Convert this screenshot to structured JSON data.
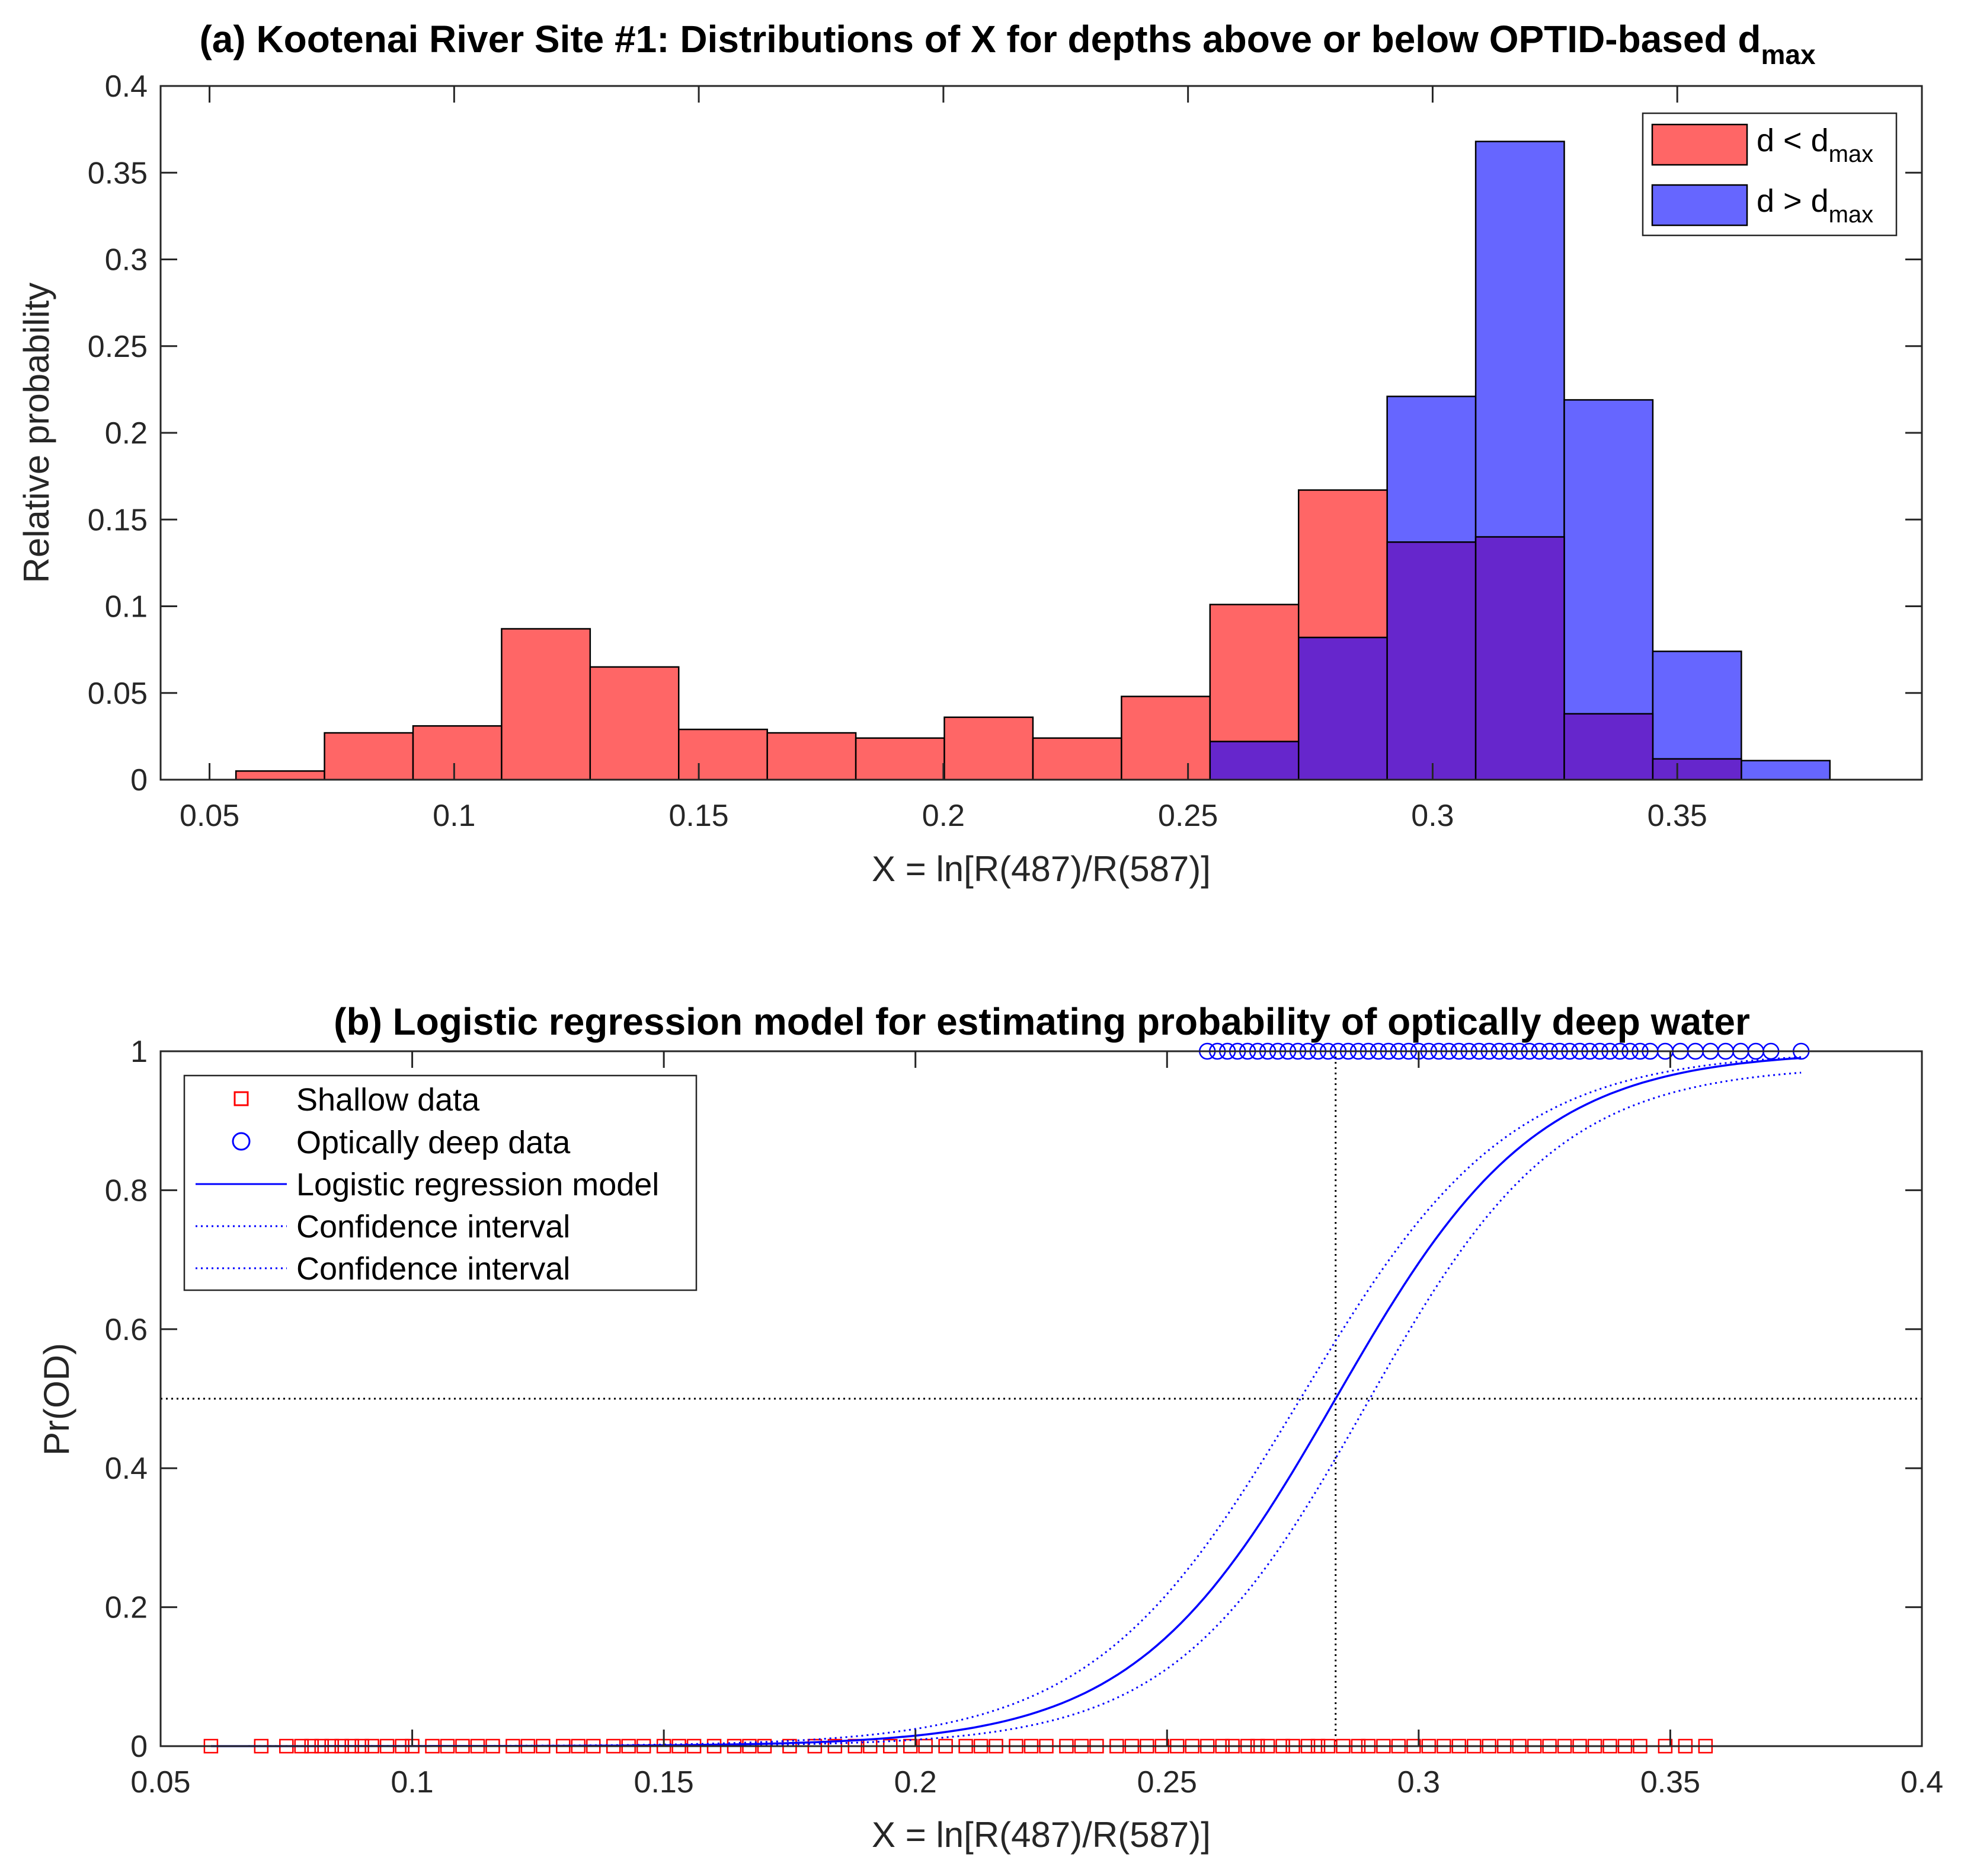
{
  "chart_data": [
    {
      "id": "a",
      "type": "histogram-overlay",
      "title": "(a) Kootenai River Site #1: Distributions of X for depths above or below OPTID-based d",
      "title_subscript": "max",
      "xlabel": "X = ln[R(487)/R(587)]",
      "ylabel": "Relative probability",
      "xlim": [
        0.04,
        0.4
      ],
      "ylim": [
        0,
        0.4
      ],
      "xticks": [
        0.05,
        0.1,
        0.15,
        0.2,
        0.25,
        0.3,
        0.35
      ],
      "xtick_labels": [
        "0.05",
        "0.1",
        "0.15",
        "0.2",
        "0.25",
        "0.3",
        "0.35"
      ],
      "yticks": [
        0,
        0.05,
        0.1,
        0.15,
        0.2,
        0.25,
        0.3,
        0.35,
        0.4
      ],
      "ytick_labels": [
        "0",
        "0.05",
        "0.1",
        "0.15",
        "0.2",
        "0.25",
        "0.3",
        "0.35",
        "0.4"
      ],
      "legend_location": "top-right",
      "colors": {
        "shallow": "#ff6666",
        "deep": "#6666ff",
        "overlap": "#6626cc"
      },
      "series": [
        {
          "name": "d < d",
          "name_subscript": "max",
          "color": "#ff6666",
          "bin_edges": [
            0.0554,
            0.0735,
            0.0916,
            0.1097,
            0.1278,
            0.1459,
            0.164,
            0.1821,
            0.2002,
            0.2183,
            0.2364,
            0.2545,
            0.2726,
            0.2907,
            0.3088,
            0.3269,
            0.345
          ],
          "values": [
            0.005,
            0.027,
            0.031,
            0.087,
            0.065,
            0.029,
            0.027,
            0.024,
            0.036,
            0.024,
            0.048,
            0.101,
            0.167,
            0.137,
            0.14,
            0.038
          ]
        },
        {
          "name": "d > d",
          "name_subscript": "max",
          "color": "#6666ff",
          "bin_edges": [
            0.2545,
            0.2726,
            0.2907,
            0.3088,
            0.3269,
            0.345,
            0.3631,
            0.3812
          ],
          "values": [
            0.022,
            0.082,
            0.221,
            0.368,
            0.219,
            0.074,
            0.011
          ]
        }
      ],
      "extra_bars": [
        {
          "x0": 0.345,
          "x1": 0.3631,
          "value": 0.012,
          "color": "#6626cc"
        }
      ]
    },
    {
      "id": "b",
      "type": "scatter-line",
      "title": "(b) Logistic regression model for estimating probability of optically deep water",
      "xlabel": "X = ln[R(487)/R(587)]",
      "ylabel": "Pr(OD)",
      "xlim": [
        0.05,
        0.4
      ],
      "ylim": [
        0,
        1
      ],
      "xticks": [
        0.05,
        0.1,
        0.15,
        0.2,
        0.25,
        0.3,
        0.35,
        0.4
      ],
      "xtick_labels": [
        "0.05",
        "0.1",
        "0.15",
        "0.2",
        "0.25",
        "0.3",
        "0.35",
        "0.4"
      ],
      "yticks": [
        0,
        0.2,
        0.4,
        0.6,
        0.8,
        1
      ],
      "ytick_labels": [
        "0",
        "0.2",
        "0.4",
        "0.6",
        "0.8",
        "1"
      ],
      "legend_location": "top-left",
      "threshold_x": 0.2835,
      "threshold_y": 0.5,
      "model": {
        "type": "logistic",
        "x0": 0.2835,
        "k": 50,
        "x_range": [
          0.06,
          0.376
        ]
      },
      "confidence_band": {
        "upper_shift": -0.007,
        "upper_k": 48,
        "lower_shift": 0.006,
        "lower_k": 52,
        "lower_end": 0.98
      },
      "series": [
        {
          "name": "Shallow data",
          "marker": "square",
          "color": "#ff0000",
          "y": 0,
          "x": [
            0.06,
            0.07,
            0.075,
            0.078,
            0.08,
            0.082,
            0.084,
            0.086,
            0.088,
            0.09,
            0.092,
            0.095,
            0.098,
            0.1,
            0.104,
            0.107,
            0.11,
            0.113,
            0.116,
            0.12,
            0.123,
            0.126,
            0.13,
            0.133,
            0.136,
            0.14,
            0.143,
            0.146,
            0.15,
            0.153,
            0.156,
            0.16,
            0.164,
            0.167,
            0.17,
            0.175,
            0.18,
            0.184,
            0.188,
            0.191,
            0.195,
            0.199,
            0.202,
            0.206,
            0.21,
            0.213,
            0.216,
            0.22,
            0.223,
            0.226,
            0.23,
            0.233,
            0.236,
            0.24,
            0.243,
            0.246,
            0.249,
            0.252,
            0.255,
            0.258,
            0.261,
            0.263,
            0.266,
            0.268,
            0.27,
            0.273,
            0.275,
            0.278,
            0.28,
            0.282,
            0.285,
            0.288,
            0.29,
            0.293,
            0.296,
            0.299,
            0.302,
            0.305,
            0.308,
            0.311,
            0.314,
            0.317,
            0.32,
            0.323,
            0.326,
            0.329,
            0.332,
            0.335,
            0.338,
            0.341,
            0.344,
            0.349,
            0.353,
            0.357
          ]
        },
        {
          "name": "Optically deep data",
          "marker": "circle",
          "color": "#0000ff",
          "y": 1,
          "x": [
            0.258,
            0.26,
            0.262,
            0.264,
            0.266,
            0.268,
            0.27,
            0.272,
            0.274,
            0.276,
            0.278,
            0.28,
            0.282,
            0.284,
            0.286,
            0.288,
            0.29,
            0.292,
            0.294,
            0.296,
            0.298,
            0.3,
            0.302,
            0.304,
            0.306,
            0.308,
            0.31,
            0.312,
            0.314,
            0.316,
            0.318,
            0.32,
            0.322,
            0.324,
            0.326,
            0.328,
            0.33,
            0.332,
            0.334,
            0.336,
            0.338,
            0.34,
            0.342,
            0.344,
            0.346,
            0.349,
            0.352,
            0.355,
            0.358,
            0.361,
            0.364,
            0.367,
            0.37,
            0.376
          ]
        },
        {
          "name": "Logistic regression model",
          "line": "solid",
          "color": "#0000ff"
        },
        {
          "name": "Confidence interval",
          "line": "dotted",
          "color": "#0000ff"
        },
        {
          "name": "Confidence interval",
          "line": "dotted",
          "color": "#0000ff"
        }
      ]
    }
  ]
}
